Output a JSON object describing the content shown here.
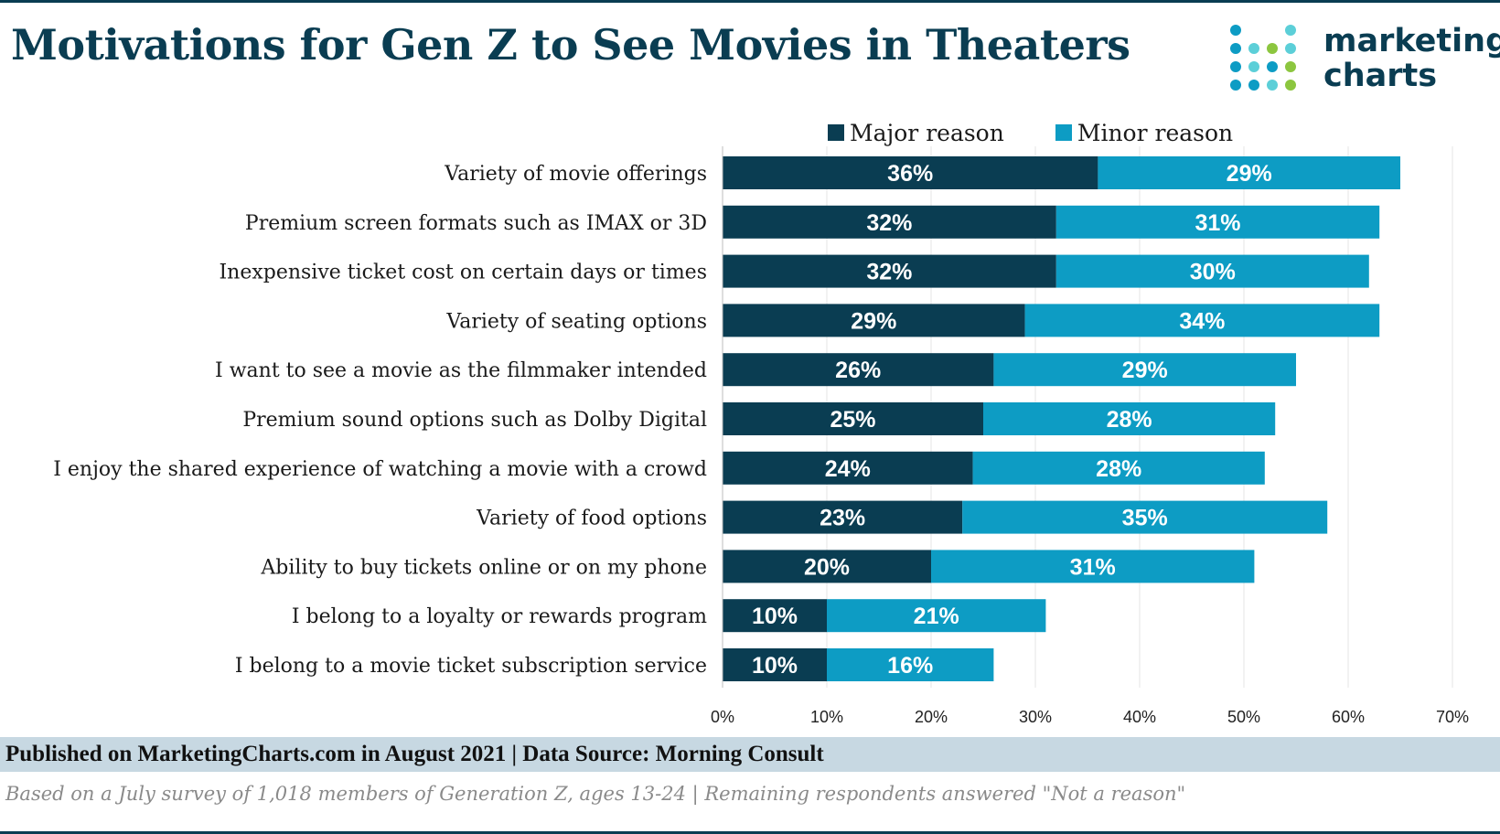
{
  "title": "Motivations for Gen Z to See Movies in Theaters",
  "logo": {
    "line1": "marketing",
    "line2": "charts",
    "icon": "dot-grid-logo"
  },
  "colors": {
    "major": "#0a3d52",
    "minor": "#0d9cc4",
    "title": "#0a3d52",
    "footer_band": "#c7d8e2"
  },
  "footer": {
    "source": "Published on MarketingCharts.com in August 2021 | Data Source: Morning Consult",
    "note": "Based on a July survey of 1,018 members of Generation Z, ages 13-24 | Remaining respondents answered \"Not a reason\""
  },
  "chart_data": {
    "type": "bar",
    "orientation": "horizontal",
    "stacked": true,
    "title": "Motivations for Gen Z to See Movies in Theaters",
    "categories": [
      "Variety of movie offerings",
      "Premium screen formats such as IMAX or 3D",
      "Inexpensive ticket cost on certain days or times",
      "Variety of seating options",
      "I want to see a movie as the filmmaker intended",
      "Premium sound options such as Dolby Digital",
      "I enjoy the shared experience of watching a movie with a crowd",
      "Variety of food options",
      "Ability to buy tickets online or on my phone",
      "I belong to a loyalty or rewards program",
      "I belong to a movie ticket subscription service"
    ],
    "series": [
      {
        "name": "Major reason",
        "color": "#0a3d52",
        "values": [
          36,
          32,
          32,
          29,
          26,
          25,
          24,
          23,
          20,
          10,
          10
        ]
      },
      {
        "name": "Minor reason",
        "color": "#0d9cc4",
        "values": [
          29,
          31,
          30,
          34,
          29,
          28,
          28,
          35,
          31,
          21,
          16
        ]
      }
    ],
    "xlim": [
      0,
      70
    ],
    "xticks": [
      "0%",
      "10%",
      "20%",
      "30%",
      "40%",
      "50%",
      "60%",
      "70%"
    ],
    "data_labels": true,
    "grid": true,
    "legend": "top"
  }
}
